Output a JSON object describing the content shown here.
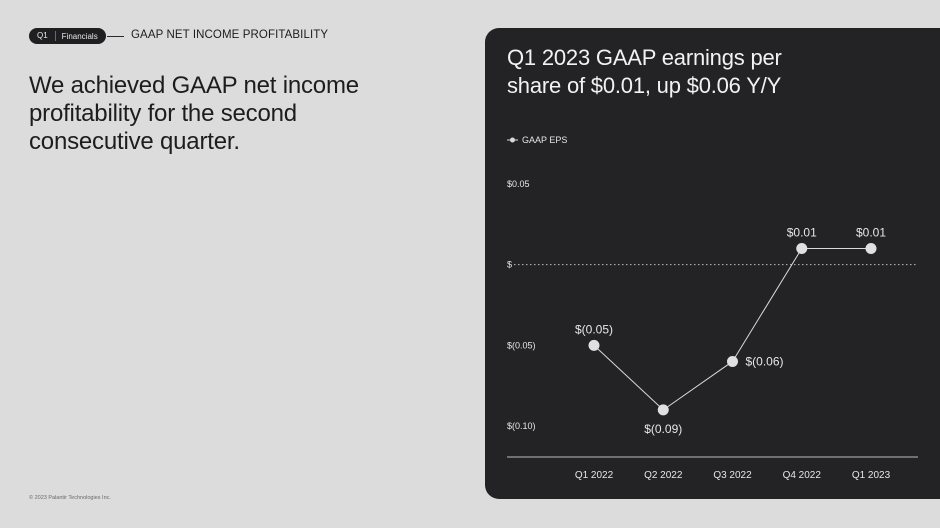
{
  "header": {
    "quarter_tag": "Q1",
    "section_tag": "Financials",
    "section_title": "GAAP NET INCOME PROFITABILITY"
  },
  "headline": "We achieved GAAP net income profitability for the second consecutive quarter.",
  "footer": {
    "copyright": "© 2023 Palantir Technologies Inc."
  },
  "chart_data": {
    "type": "line",
    "title": "Q1 2023 GAAP earnings per share of $0.01, up $0.06 Y/Y",
    "legend": {
      "entries": [
        "GAAP EPS"
      ],
      "placement": "top-left"
    },
    "categories": [
      "Q1 2022",
      "Q2 2022",
      "Q3 2022",
      "Q4 2022",
      "Q1 2023"
    ],
    "series": [
      {
        "name": "GAAP EPS",
        "values": [
          -0.05,
          -0.09,
          -0.06,
          0.01,
          0.01
        ],
        "labels": [
          "$(0.05)",
          "$(0.09)",
          "$(0.06)",
          "$0.01",
          "$0.01"
        ]
      }
    ],
    "y_ticks": [
      {
        "value": 0.05,
        "label": "$0.05"
      },
      {
        "value": 0,
        "label": "$"
      },
      {
        "value": -0.05,
        "label": "$(0.05)"
      },
      {
        "value": -0.1,
        "label": "$(0.10)"
      }
    ],
    "ylim": [
      -0.1,
      0.05
    ],
    "zero_line": "dotted",
    "grid": false,
    "colors": {
      "panel": "#232325",
      "line": "#d9d9d9",
      "text": "#e6e6e6"
    }
  }
}
